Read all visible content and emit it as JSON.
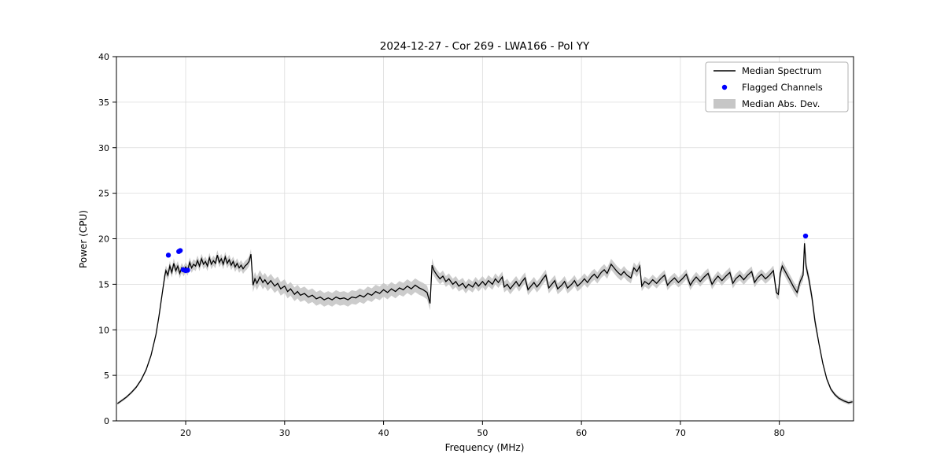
{
  "chart_data": {
    "type": "line",
    "title": "2024-12-27 - Cor 269 - LWA166 - Pol YY",
    "xlabel": "Frequency (MHz)",
    "ylabel": "Power (CPU)",
    "xlim": [
      13.0,
      87.5
    ],
    "ylim": [
      0,
      40
    ],
    "xticks": [
      20,
      30,
      40,
      50,
      60,
      70,
      80
    ],
    "yticks": [
      0,
      5,
      10,
      15,
      20,
      25,
      30,
      35,
      40
    ],
    "grid": true,
    "colors": {
      "median_line": "#000000",
      "flagged_marker": "#0000ff",
      "mad_band": "#c6c6c6",
      "grid": "#dcdcdc",
      "legend_border": "#b0b0b0"
    },
    "legend": {
      "position": "upper right",
      "entries": [
        {
          "label": "Median Spectrum",
          "type": "line",
          "color": "#000000"
        },
        {
          "label": "Flagged Channels",
          "type": "marker",
          "color": "#0000ff"
        },
        {
          "label": "Median Abs. Dev.",
          "type": "band",
          "color": "#c6c6c6"
        }
      ]
    },
    "series": {
      "median_spectrum": {
        "x": [
          13.1,
          13.5,
          14.0,
          14.5,
          15.0,
          15.5,
          16.0,
          16.5,
          17.0,
          17.3,
          17.6,
          17.9,
          18.0,
          18.2,
          18.4,
          18.6,
          18.8,
          19.0,
          19.2,
          19.4,
          19.6,
          19.8,
          20.0,
          20.2,
          20.4,
          20.6,
          20.8,
          21.0,
          21.2,
          21.4,
          21.6,
          21.8,
          22.0,
          22.2,
          22.4,
          22.6,
          22.8,
          23.0,
          23.2,
          23.4,
          23.6,
          23.8,
          24.0,
          24.2,
          24.4,
          24.6,
          24.8,
          25.0,
          25.2,
          25.4,
          25.6,
          25.8,
          26.0,
          26.2,
          26.4,
          26.6,
          26.8,
          27.0,
          27.2,
          27.5,
          27.8,
          28.0,
          28.3,
          28.6,
          29.0,
          29.3,
          29.6,
          30.0,
          30.3,
          30.6,
          31.0,
          31.3,
          31.6,
          32.0,
          32.4,
          32.8,
          33.2,
          33.6,
          34.0,
          34.4,
          34.8,
          35.2,
          35.6,
          36.0,
          36.4,
          36.8,
          37.2,
          37.6,
          38.0,
          38.4,
          38.8,
          39.2,
          39.6,
          40.0,
          40.4,
          40.8,
          41.2,
          41.6,
          42.0,
          42.4,
          42.8,
          43.2,
          43.6,
          44.0,
          44.4,
          44.7,
          44.9,
          45.1,
          45.4,
          45.7,
          46.0,
          46.3,
          46.6,
          47.0,
          47.3,
          47.6,
          48.0,
          48.3,
          48.6,
          49.0,
          49.3,
          49.6,
          50.0,
          50.3,
          50.6,
          51.0,
          51.3,
          51.6,
          52.0,
          52.2,
          52.5,
          52.8,
          53.1,
          53.4,
          53.7,
          54.0,
          54.3,
          54.6,
          54.9,
          55.2,
          55.5,
          55.8,
          56.1,
          56.4,
          56.7,
          57.0,
          57.3,
          57.6,
          58.0,
          58.3,
          58.6,
          59.0,
          59.3,
          59.6,
          60.0,
          60.3,
          60.6,
          61.0,
          61.3,
          61.6,
          62.0,
          62.3,
          62.6,
          63.0,
          63.3,
          63.6,
          64.0,
          64.3,
          64.6,
          65.0,
          65.3,
          65.6,
          65.9,
          66.1,
          66.4,
          66.8,
          67.2,
          67.6,
          68.0,
          68.4,
          68.7,
          69.0,
          69.4,
          69.8,
          70.2,
          70.6,
          71.0,
          71.3,
          71.6,
          72.0,
          72.4,
          72.8,
          73.2,
          73.5,
          73.8,
          74.2,
          74.6,
          75.0,
          75.3,
          75.6,
          76.0,
          76.4,
          76.8,
          77.2,
          77.5,
          77.8,
          78.2,
          78.6,
          79.0,
          79.4,
          79.7,
          79.9,
          80.1,
          80.3,
          80.6,
          80.9,
          81.2,
          81.5,
          81.8,
          82.1,
          82.4,
          82.55,
          82.7,
          83.0,
          83.3,
          83.6,
          84.0,
          84.4,
          84.8,
          85.2,
          85.6,
          86.0,
          86.5,
          87.0,
          87.4
        ],
        "y": [
          1.9,
          2.2,
          2.6,
          3.1,
          3.7,
          4.5,
          5.6,
          7.2,
          9.5,
          11.5,
          13.8,
          16.0,
          16.5,
          16.0,
          17.0,
          16.3,
          17.3,
          16.5,
          17.0,
          16.2,
          16.8,
          16.4,
          16.9,
          16.5,
          17.4,
          16.8,
          17.2,
          17.0,
          17.6,
          17.0,
          17.8,
          17.2,
          17.5,
          17.0,
          17.9,
          17.2,
          17.6,
          17.3,
          18.2,
          17.4,
          17.8,
          17.2,
          18.0,
          17.3,
          17.7,
          17.1,
          17.5,
          16.9,
          17.3,
          16.8,
          17.1,
          16.7,
          17.0,
          17.2,
          17.5,
          18.3,
          14.9,
          15.6,
          15.1,
          15.8,
          15.2,
          15.5,
          15.0,
          15.4,
          14.8,
          15.1,
          14.5,
          14.8,
          14.2,
          14.5,
          13.9,
          14.2,
          13.8,
          14.0,
          13.6,
          13.8,
          13.4,
          13.6,
          13.3,
          13.5,
          13.3,
          13.6,
          13.4,
          13.5,
          13.3,
          13.6,
          13.5,
          13.8,
          13.6,
          14.0,
          13.8,
          14.2,
          14.0,
          14.4,
          14.1,
          14.5,
          14.2,
          14.6,
          14.4,
          14.8,
          14.5,
          14.9,
          14.6,
          14.4,
          14.1,
          12.9,
          17.1,
          16.5,
          16.0,
          15.6,
          15.9,
          15.3,
          15.6,
          15.0,
          15.3,
          14.8,
          15.1,
          14.6,
          15.0,
          14.7,
          15.2,
          14.8,
          15.3,
          14.9,
          15.4,
          15.0,
          15.6,
          15.2,
          15.8,
          14.7,
          15.0,
          14.5,
          14.9,
          15.3,
          14.8,
          15.3,
          15.7,
          14.4,
          14.8,
          15.2,
          14.7,
          15.1,
          15.6,
          16.0,
          14.6,
          15.0,
          15.4,
          14.5,
          14.9,
          15.3,
          14.6,
          15.0,
          15.4,
          14.8,
          15.2,
          15.6,
          15.2,
          15.8,
          16.1,
          15.7,
          16.3,
          16.6,
          16.2,
          17.2,
          16.8,
          16.4,
          16.0,
          16.4,
          16.0,
          15.7,
          16.8,
          16.4,
          17.0,
          14.8,
          15.3,
          15.0,
          15.5,
          15.1,
          15.6,
          16.0,
          14.9,
          15.3,
          15.7,
          15.2,
          15.6,
          16.1,
          14.9,
          15.4,
          15.8,
          15.3,
          15.8,
          16.2,
          15.0,
          15.5,
          15.9,
          15.4,
          15.9,
          16.3,
          15.1,
          15.6,
          16.0,
          15.5,
          16.0,
          16.4,
          15.2,
          15.7,
          16.1,
          15.6,
          16.0,
          16.5,
          14.1,
          13.9,
          16.2,
          17.0,
          16.4,
          15.8,
          15.2,
          14.6,
          14.1,
          15.3,
          16.0,
          19.5,
          17.0,
          15.5,
          13.5,
          11.0,
          8.5,
          6.3,
          4.6,
          3.5,
          2.9,
          2.5,
          2.2,
          2.0,
          2.1
        ]
      },
      "mad_segments": [
        {
          "x0": 13.0,
          "x1": 17.6,
          "value": 0.15
        },
        {
          "x0": 17.6,
          "x1": 26.7,
          "value": 0.55
        },
        {
          "x0": 26.7,
          "x1": 44.9,
          "value": 0.75
        },
        {
          "x0": 44.9,
          "x1": 66.0,
          "value": 0.6
        },
        {
          "x0": 66.0,
          "x1": 79.8,
          "value": 0.55
        },
        {
          "x0": 79.8,
          "x1": 83.6,
          "value": 0.6
        },
        {
          "x0": 83.6,
          "x1": 87.5,
          "value": 0.2
        }
      ],
      "flagged_channels": {
        "x": [
          18.25,
          19.3,
          19.45,
          19.75,
          20.0,
          20.2,
          82.65
        ],
        "y": [
          18.2,
          18.6,
          18.7,
          16.6,
          16.5,
          16.55,
          20.3
        ]
      }
    }
  }
}
